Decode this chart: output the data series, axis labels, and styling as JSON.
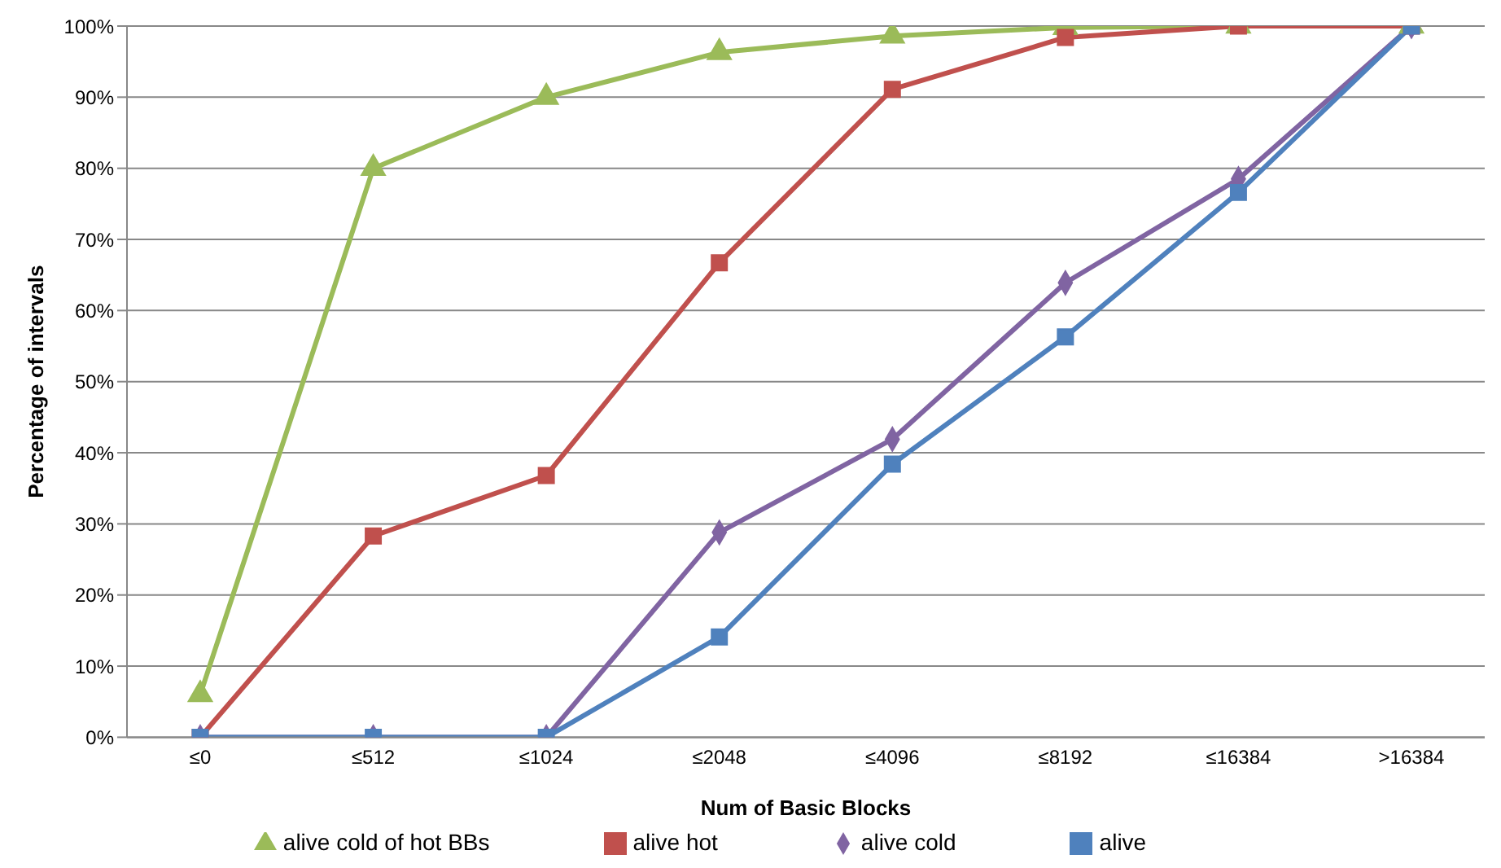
{
  "chart_data": {
    "type": "line",
    "xlabel": "Num of Basic Blocks",
    "ylabel": "Percentage of intervals",
    "categories": [
      "≤0",
      "≤512",
      "≤1024",
      "≤2048",
      "≤4096",
      "≤8192",
      "≤16384",
      ">16384"
    ],
    "series": [
      {
        "name": "alive cold of hot BBs",
        "color": "#9bbb59",
        "marker": "triangle",
        "values": [
          6,
          80,
          90,
          96.3,
          98.6,
          99.8,
          100,
          100
        ]
      },
      {
        "name": "alive hot",
        "color": "#c0504d",
        "marker": "square",
        "values": [
          0,
          28.3,
          36.8,
          66.7,
          91.1,
          98.4,
          100,
          100
        ]
      },
      {
        "name": "alive cold",
        "color": "#8064a2",
        "marker": "diamond",
        "values": [
          0,
          0,
          0,
          28.8,
          41.9,
          63.9,
          78.5,
          100
        ]
      },
      {
        "name": "alive",
        "color": "#4f81bd",
        "marker": "square",
        "values": [
          0,
          0,
          0,
          14.1,
          38.4,
          56.3,
          76.6,
          100
        ]
      }
    ],
    "ylim": [
      0,
      100
    ],
    "yticks": [
      {
        "value": 0,
        "label": "0%"
      },
      {
        "value": 10,
        "label": "10%"
      },
      {
        "value": 20,
        "label": "20%"
      },
      {
        "value": 30,
        "label": "30%"
      },
      {
        "value": 40,
        "label": "40%"
      },
      {
        "value": 50,
        "label": "50%"
      },
      {
        "value": 60,
        "label": "60%"
      },
      {
        "value": 70,
        "label": "70%"
      },
      {
        "value": 80,
        "label": "80%"
      },
      {
        "value": 90,
        "label": "90%"
      },
      {
        "value": 100,
        "label": "100%"
      }
    ],
    "grid": "y",
    "legend": "bottom"
  }
}
